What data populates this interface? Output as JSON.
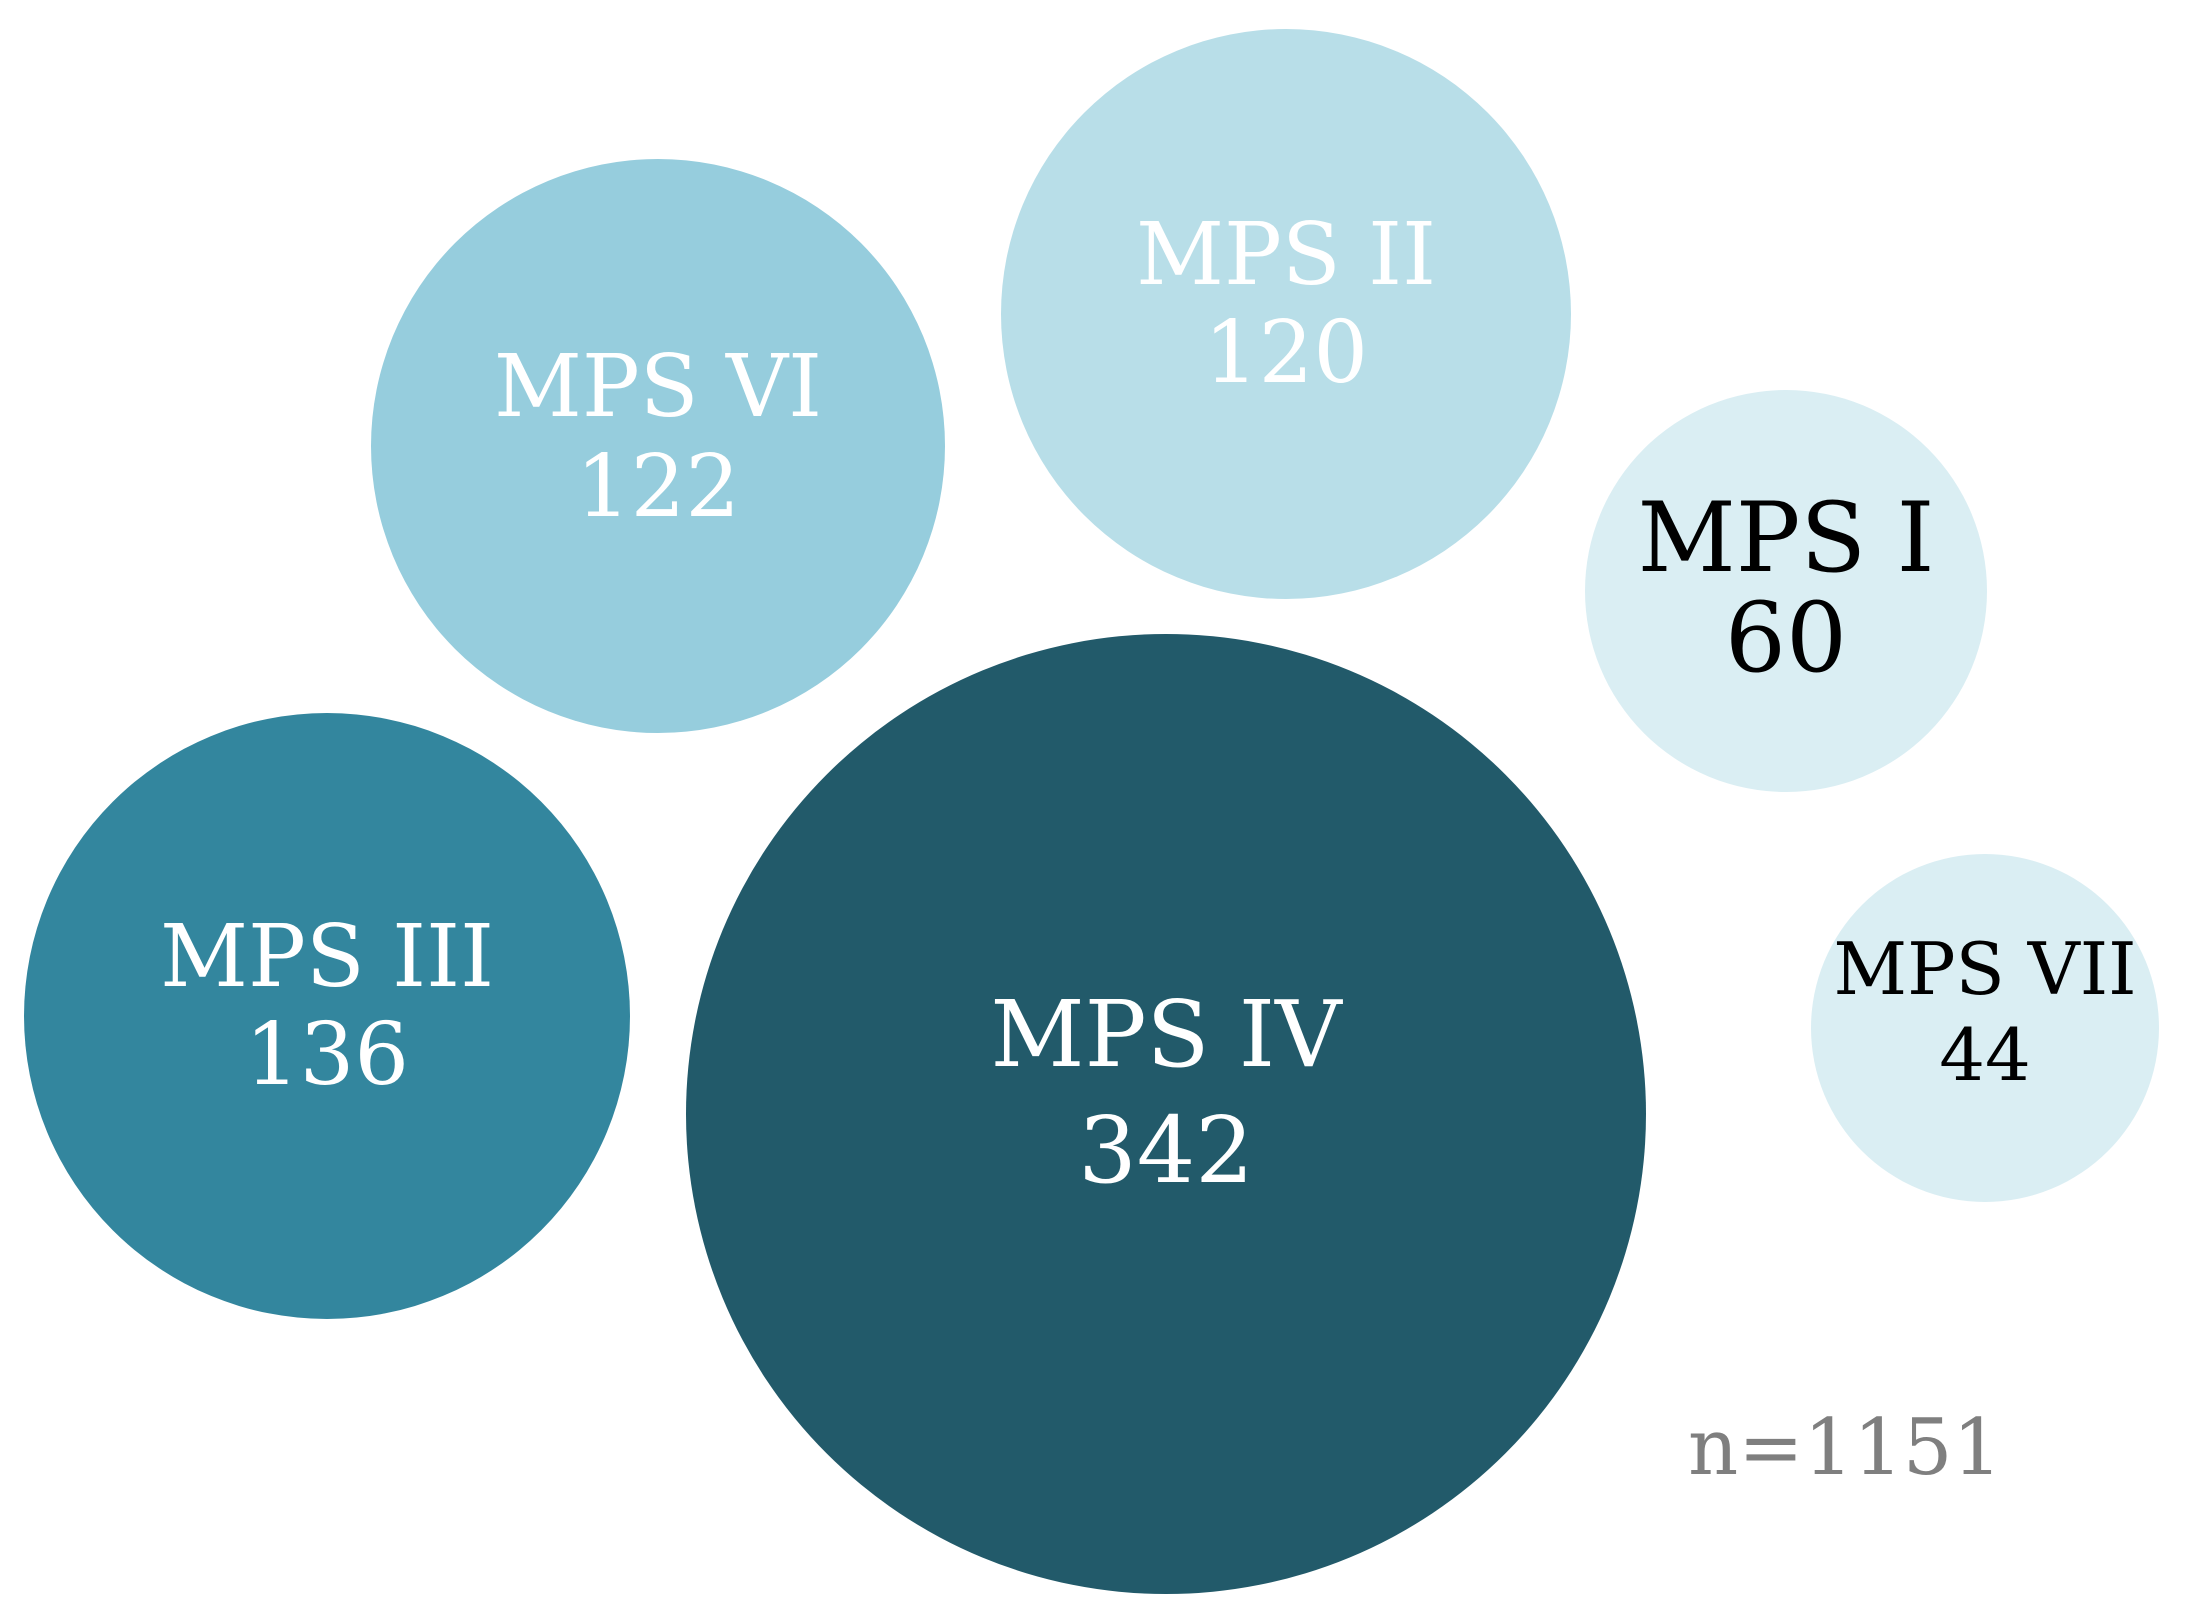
{
  "chart_data": {
    "type": "bubble",
    "title": "",
    "total_label": "n=1151",
    "series": [
      {
        "name": "MPS IV",
        "label": "MPS IV",
        "value": "342",
        "color": "#225a6a",
        "text_color": "#ffffff"
      },
      {
        "name": "MPS III",
        "label": "MPS III",
        "value": "136",
        "color": "#33869e",
        "text_color": "#ffffff"
      },
      {
        "name": "MPS VI",
        "label": "MPS VI",
        "value": "122",
        "color": "#96cddd",
        "text_color": "#ffffff"
      },
      {
        "name": "MPS II",
        "label": "MPS II",
        "value": "120",
        "color": "#b8dee8",
        "text_color": "#ffffff"
      },
      {
        "name": "MPS I",
        "label": "MPS I",
        "value": "60",
        "color": "#daeef3",
        "text_color": "#000000"
      },
      {
        "name": "MPS VII",
        "label": "MPS VII",
        "value": "44",
        "color": "#daeef3",
        "text_color": "#000000"
      }
    ]
  }
}
